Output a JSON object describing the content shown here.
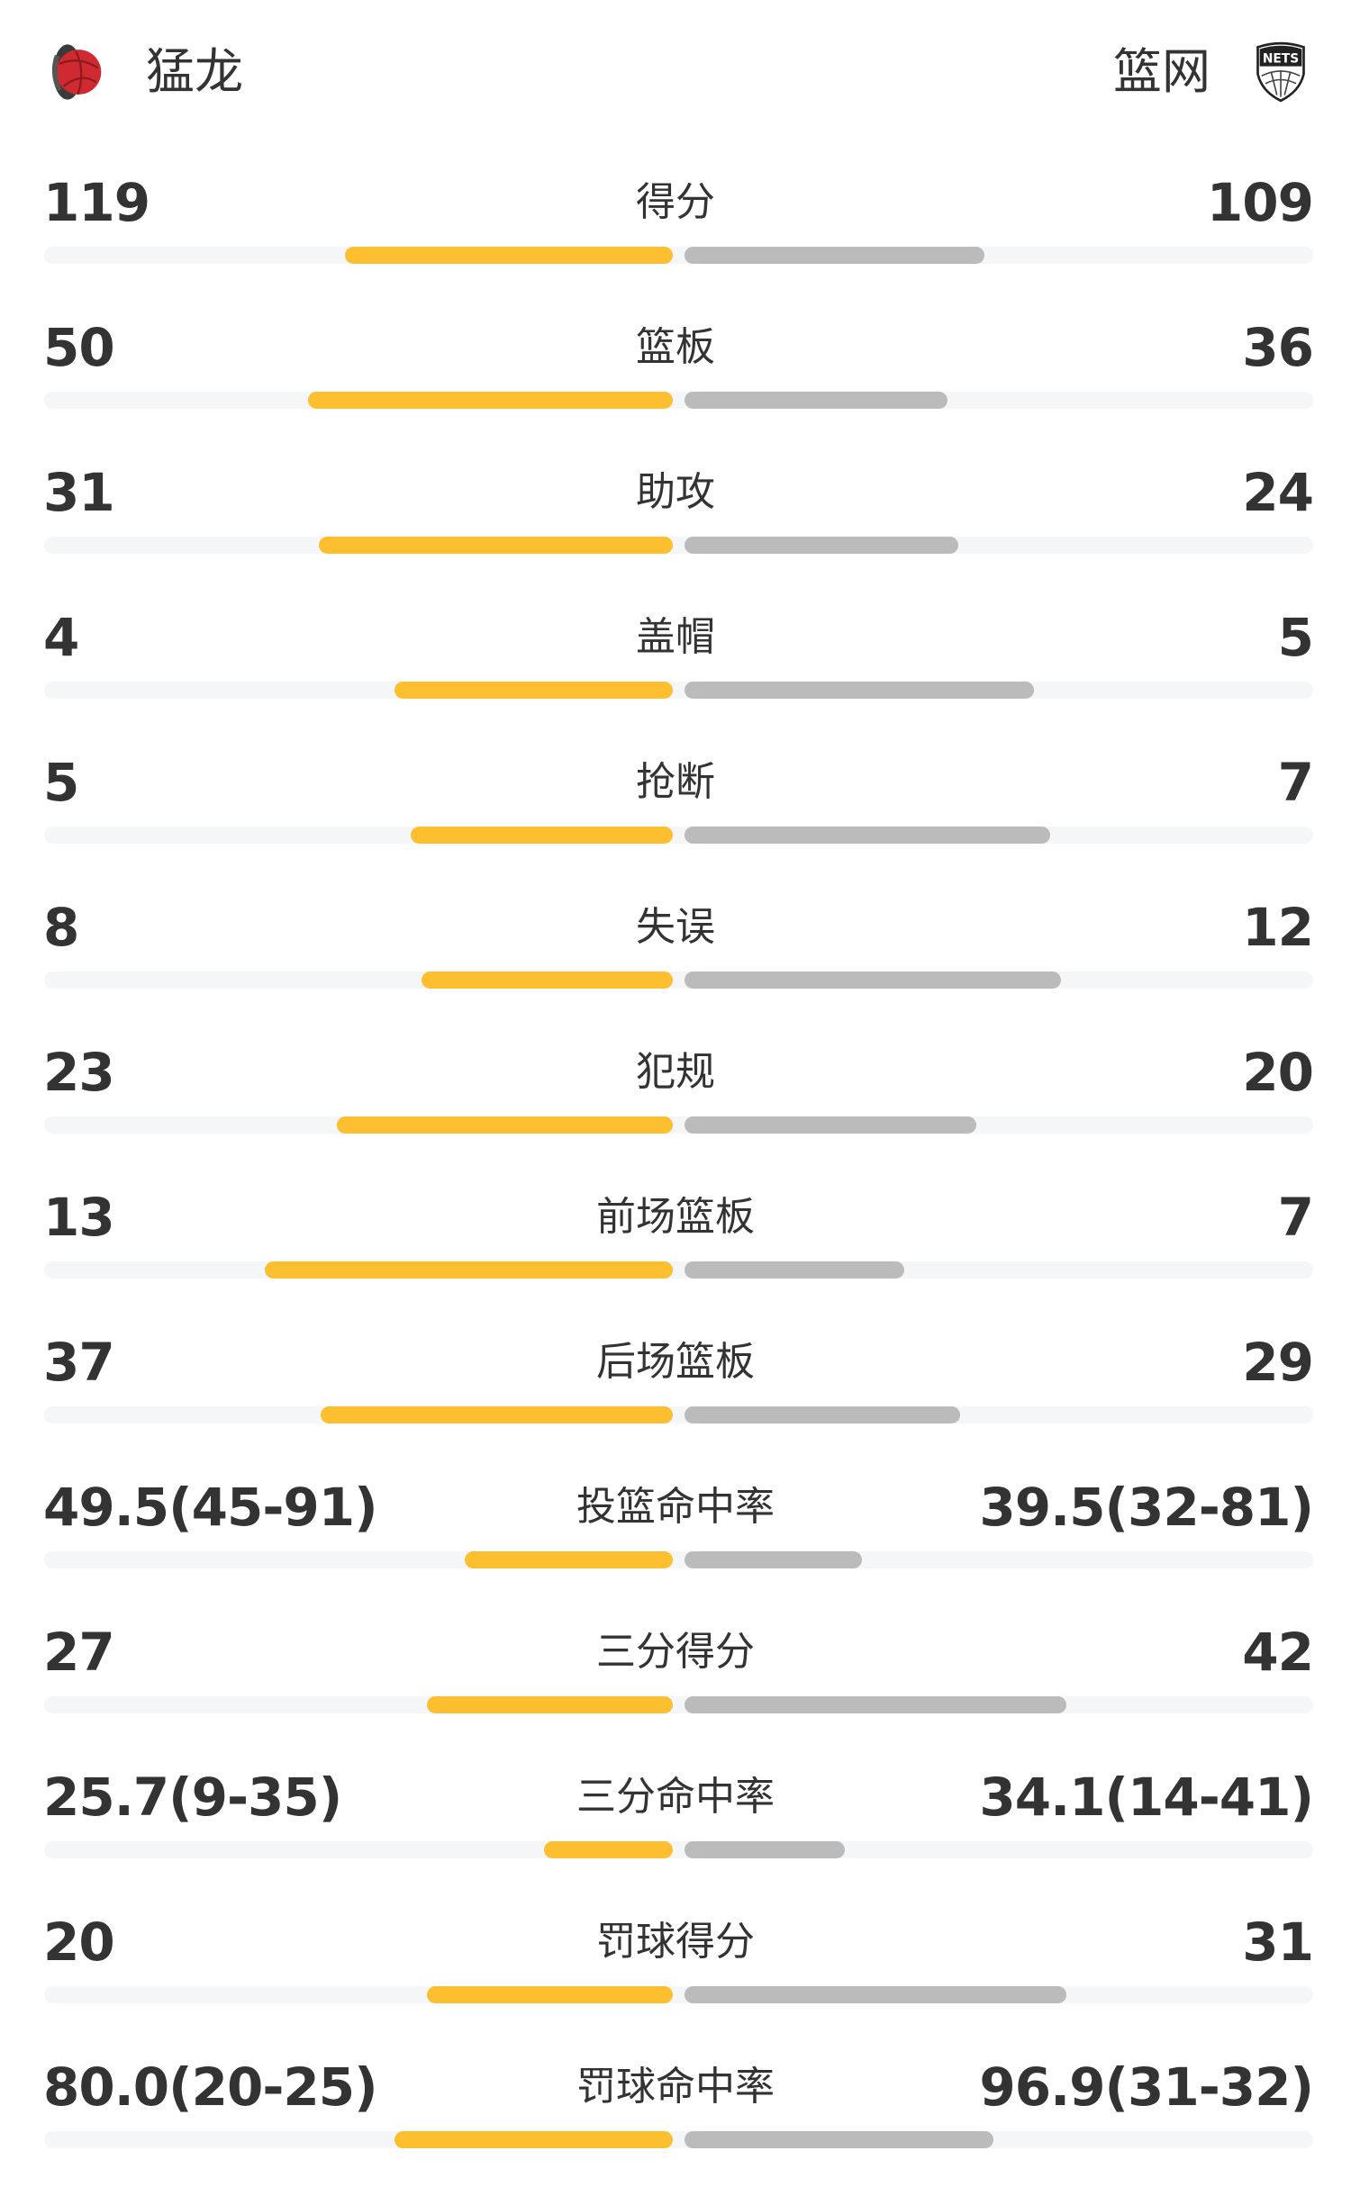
{
  "header": {
    "home_team": "猛龙",
    "away_team": "篮网",
    "home_logo_icon": "raptors-logo-icon",
    "away_logo_icon": "nets-logo-icon",
    "away_logo_text": "NETS"
  },
  "colors": {
    "home_bar": "#fbbf2f",
    "away_bar": "#bbbbbb",
    "track": "#f5f6f8",
    "text": "#333333"
  },
  "stats": [
    {
      "label": "得分",
      "home": "119",
      "away": "109",
      "home_fill": 0.522,
      "away_fill": 0.478
    },
    {
      "label": "篮板",
      "home": "50",
      "away": "36",
      "home_fill": 0.581,
      "away_fill": 0.419
    },
    {
      "label": "助攻",
      "home": "31",
      "away": "24",
      "home_fill": 0.564,
      "away_fill": 0.436
    },
    {
      "label": "盖帽",
      "home": "4",
      "away": "5",
      "home_fill": 0.444,
      "away_fill": 0.556
    },
    {
      "label": "抢断",
      "home": "5",
      "away": "7",
      "home_fill": 0.417,
      "away_fill": 0.583
    },
    {
      "label": "失误",
      "home": "8",
      "away": "12",
      "home_fill": 0.4,
      "away_fill": 0.6
    },
    {
      "label": "犯规",
      "home": "23",
      "away": "20",
      "home_fill": 0.535,
      "away_fill": 0.465
    },
    {
      "label": "前场篮板",
      "home": "13",
      "away": "7",
      "home_fill": 0.65,
      "away_fill": 0.35
    },
    {
      "label": "后场篮板",
      "home": "37",
      "away": "29",
      "home_fill": 0.561,
      "away_fill": 0.439
    },
    {
      "label": "投篮命中率",
      "home": "49.5(45-91)",
      "away": "39.5(32-81)",
      "home_fill": 0.331,
      "away_fill": 0.283
    },
    {
      "label": "三分得分",
      "home": "27",
      "away": "42",
      "home_fill": 0.391,
      "away_fill": 0.609
    },
    {
      "label": "三分命中率",
      "home": "25.7(9-35)",
      "away": "34.1(14-41)",
      "home_fill": 0.205,
      "away_fill": 0.255
    },
    {
      "label": "罚球得分",
      "home": "20",
      "away": "31",
      "home_fill": 0.392,
      "away_fill": 0.608
    },
    {
      "label": "罚球命中率",
      "home": "80.0(20-25)",
      "away": "96.9(31-32)",
      "home_fill": 0.444,
      "away_fill": 0.492
    }
  ]
}
